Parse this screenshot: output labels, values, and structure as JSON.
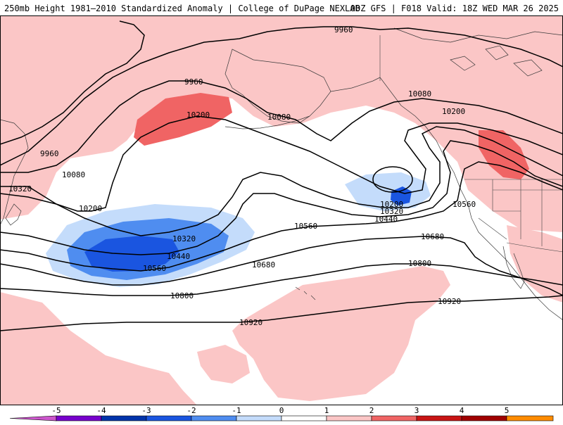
{
  "header": {
    "title_left": "250mb Height 1981–2010 Standardized Anomaly | College of DuPage NEXLAB",
    "title_right": "00Z GFS | F018 Valid: 18Z WED MAR 26 2025"
  },
  "map": {
    "contour_labels": [
      "9960",
      "9960",
      "9960",
      "10080",
      "10080",
      "10080",
      "10200",
      "10200",
      "10200",
      "10200",
      "10320",
      "10320",
      "10320",
      "10440",
      "10440",
      "10560",
      "10560",
      "10560",
      "10680",
      "10680",
      "10800",
      "10800",
      "10920",
      "10920"
    ]
  },
  "colorbar": {
    "ticks": [
      "-5",
      "-4",
      "-3",
      "-2",
      "-1",
      "0",
      "1",
      "2",
      "3",
      "4",
      "5"
    ],
    "colors": [
      "#cc55cc",
      "#7700cc",
      "#0033aa",
      "#1a55e0",
      "#4f8df0",
      "#c4dcfb",
      "#ffffff",
      "#fbc6c6",
      "#f06464",
      "#c81414",
      "#a00000",
      "#ff8c00",
      "#f2c500"
    ]
  }
}
